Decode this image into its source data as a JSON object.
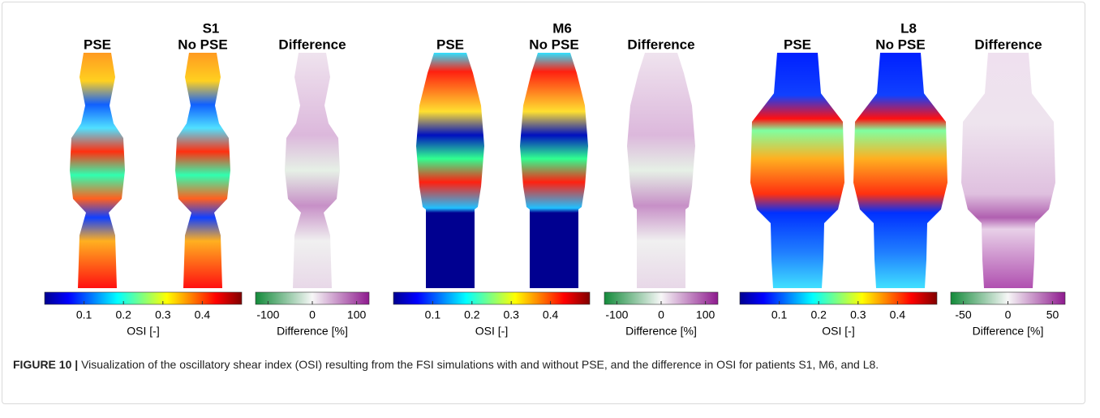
{
  "panels": [
    {
      "patient": "S1",
      "columns": [
        "PSE",
        "No PSE",
        "Difference"
      ],
      "osi_colorbar": {
        "ticks": [
          0.1,
          0.2,
          0.3,
          0.4
        ],
        "label": "OSI [-]"
      },
      "diff_colorbar": {
        "ticks": [
          -100,
          0,
          100
        ],
        "label": "Difference [%]"
      }
    },
    {
      "patient": "M6",
      "columns": [
        "PSE",
        "No PSE",
        "Difference"
      ],
      "osi_colorbar": {
        "ticks": [
          0.1,
          0.2,
          0.3,
          0.4
        ],
        "label": "OSI [-]"
      },
      "diff_colorbar": {
        "ticks": [
          -100,
          0,
          100
        ],
        "label": "Difference [%]"
      }
    },
    {
      "patient": "L8",
      "columns": [
        "PSE",
        "No PSE",
        "Difference"
      ],
      "osi_colorbar": {
        "ticks": [
          0.1,
          0.2,
          0.3,
          0.4
        ],
        "label": "OSI [-]"
      },
      "diff_colorbar": {
        "ticks": [
          -50,
          0,
          50
        ],
        "label": "Difference [%]"
      }
    }
  ],
  "caption": {
    "label": "FIGURE 10 |",
    "text": "Visualization of the oscillatory shear index (OSI) resulting from the FSI simulations with and without PSE, and the difference in OSI for patients S1, M6, and L8."
  }
}
